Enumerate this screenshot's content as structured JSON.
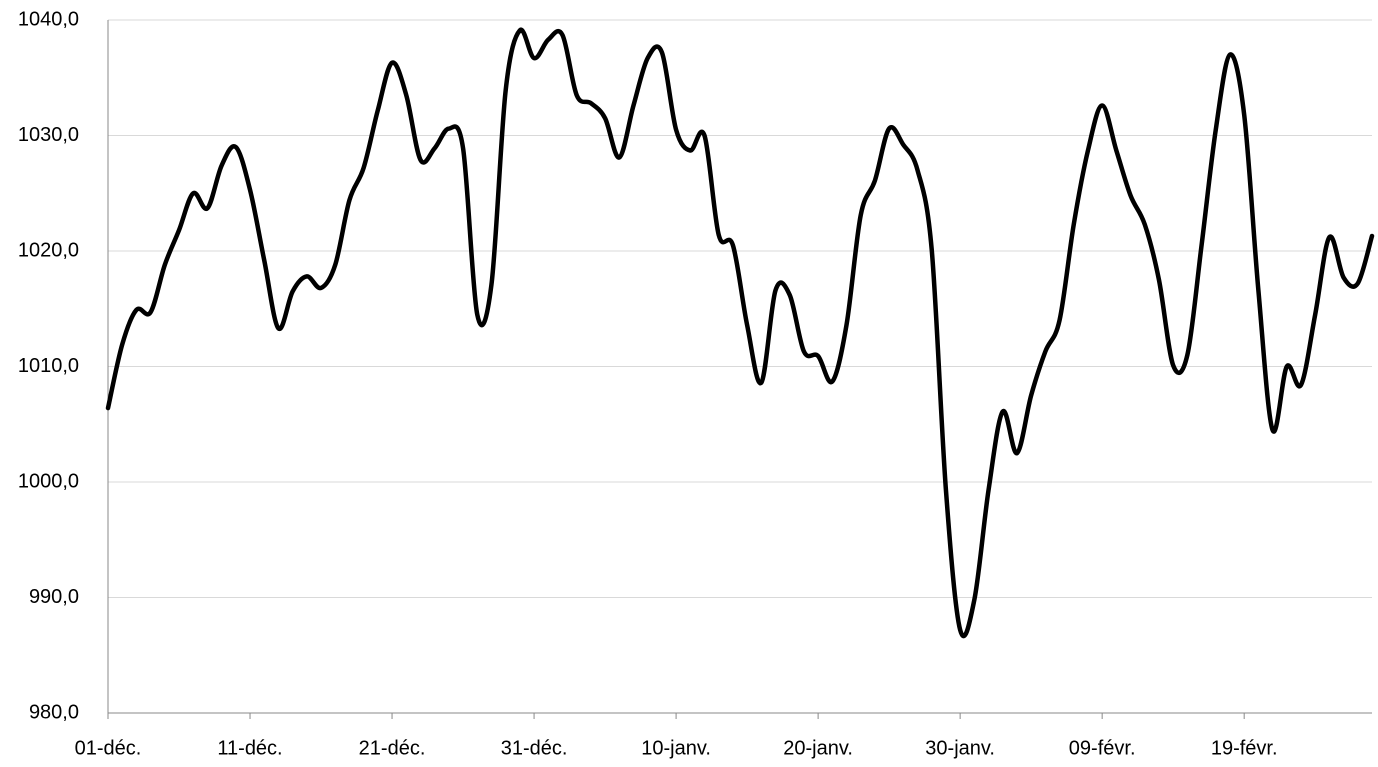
{
  "chart_data": {
    "type": "line",
    "categories": [
      "01-déc.",
      null,
      null,
      null,
      null,
      null,
      null,
      null,
      null,
      null,
      "11-déc.",
      null,
      null,
      null,
      null,
      null,
      null,
      null,
      null,
      null,
      "21-déc.",
      null,
      null,
      null,
      null,
      null,
      null,
      null,
      null,
      null,
      "31-déc.",
      null,
      null,
      null,
      null,
      null,
      null,
      null,
      null,
      null,
      "10-janv.",
      null,
      null,
      null,
      null,
      null,
      null,
      null,
      null,
      null,
      "20-janv.",
      null,
      null,
      null,
      null,
      null,
      null,
      null,
      null,
      null,
      "30-janv.",
      null,
      null,
      null,
      null,
      null,
      null,
      null,
      null,
      null,
      "09-févr.",
      null,
      null,
      null,
      null,
      null,
      null,
      null,
      null,
      null,
      "19-févr.",
      null,
      null,
      null,
      null,
      null,
      null,
      null,
      null,
      null
    ],
    "values": [
      1006.4,
      1011.9,
      1014.9,
      1014.7,
      1018.8,
      1021.8,
      1025.0,
      1023.7,
      1027.4,
      1029.0,
      1025.3,
      1019.2,
      1013.3,
      1016.5,
      1017.8,
      1016.8,
      1018.8,
      1024.4,
      1027.2,
      1032.2,
      1036.3,
      1033.5,
      1027.9,
      1028.9,
      1030.6,
      1028.9,
      1014.5,
      1017.1,
      1033.9,
      1039.1,
      1036.7,
      1038.3,
      1038.7,
      1033.5,
      1032.8,
      1031.5,
      1028.1,
      1032.6,
      1036.7,
      1037.2,
      1030.5,
      1028.7,
      1030.0,
      1021.4,
      1020.5,
      1013.6,
      1008.6,
      1016.6,
      1016.2,
      1011.3,
      1010.9,
      1008.7,
      1013.6,
      1023.1,
      1026.1,
      1030.6,
      1029.2,
      1027.0,
      1020.1,
      999.3,
      987.2,
      989.8,
      999.3,
      1006.1,
      1002.5,
      1007.5,
      1011.3,
      1014.0,
      1022.3,
      1028.7,
      1032.6,
      1028.7,
      1024.8,
      1022.3,
      1017.5,
      1010.1,
      1011.0,
      1020.5,
      1030.5,
      1037.0,
      1031.8,
      1016.6,
      1004.5,
      1010.0,
      1008.4,
      1014.5,
      1021.2,
      1017.7,
      1017.2,
      1021.3
    ],
    "color": "#000000",
    "ylim": [
      980,
      1040
    ],
    "yticks": [
      {
        "value": 980,
        "label": "980,0"
      },
      {
        "value": 990,
        "label": "990,0"
      },
      {
        "value": 1000,
        "label": "1000,0"
      },
      {
        "value": 1010,
        "label": "1010,0"
      },
      {
        "value": 1020,
        "label": "1020,0"
      },
      {
        "value": 1030,
        "label": "1030,0"
      },
      {
        "value": 1040,
        "label": "1040,0"
      }
    ],
    "grid": true
  }
}
